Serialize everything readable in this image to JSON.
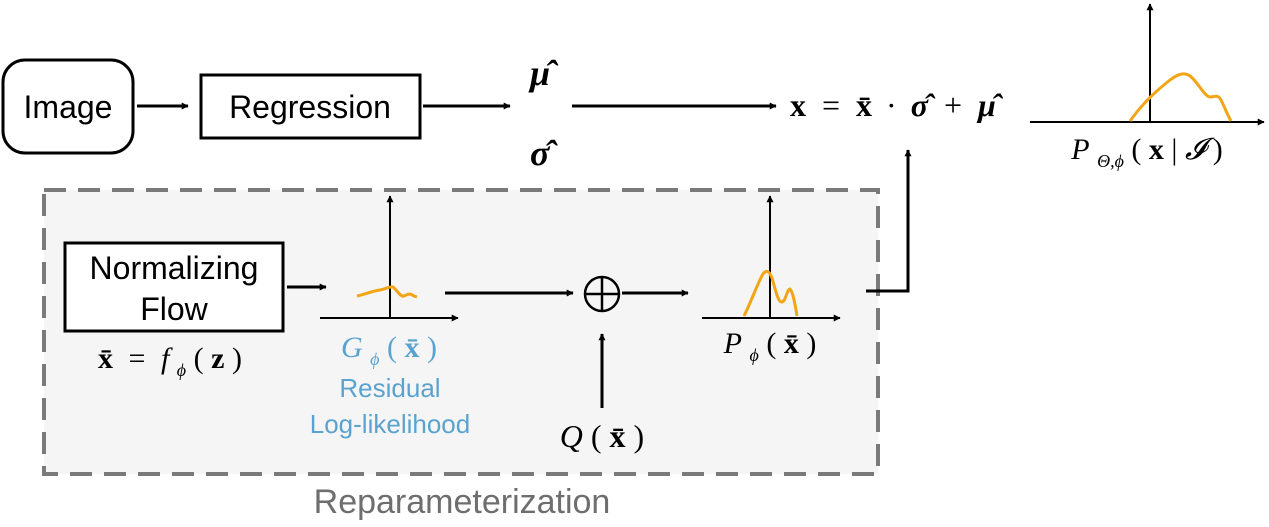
{
  "nodes": {
    "image": "Image",
    "regression": "Regression",
    "normalizing_flow_line1": "Normalizing",
    "normalizing_flow_line2": "Flow"
  },
  "regression_outputs": {
    "mu_hat": "μ̂",
    "sigma_hat": "σ̂"
  },
  "output_equation": {
    "lhs": "x",
    "equals": "=",
    "xbar": "x̄",
    "dot": "·",
    "sigma": "σ̂",
    "plus": "+",
    "mu": "μ̂"
  },
  "output_distribution": {
    "P": "P",
    "subscript": "Θ,ϕ",
    "open": "(",
    "x": "x",
    "bar": "|",
    "I": "𝓘",
    "close": ")"
  },
  "flow_equation": {
    "xbar": "x̄",
    "equals": "=",
    "f": "f",
    "sub": "ϕ",
    "open": "(",
    "z": "z",
    "close": ")"
  },
  "residual": {
    "G": "G",
    "sub": "ϕ",
    "open": "(",
    "xbar": "x̄",
    "close": ")",
    "caption_line1": "Residual",
    "caption_line2": "Log-likelihood"
  },
  "combine": {
    "symbol": "⊕",
    "Q": "Q",
    "open": "(",
    "xbar": "x̄",
    "close": ")"
  },
  "prior": {
    "P": "P",
    "sub": "ϕ",
    "open": "(",
    "xbar": "x̄",
    "close": ")"
  },
  "group": {
    "label": "Reparameterization"
  },
  "colors": {
    "curve": "#f2a516",
    "residual_text": "#5ba3cf",
    "group_fill": "#f5f5f5",
    "group_border": "#7a7a7a",
    "group_label": "#6e6e6e"
  }
}
